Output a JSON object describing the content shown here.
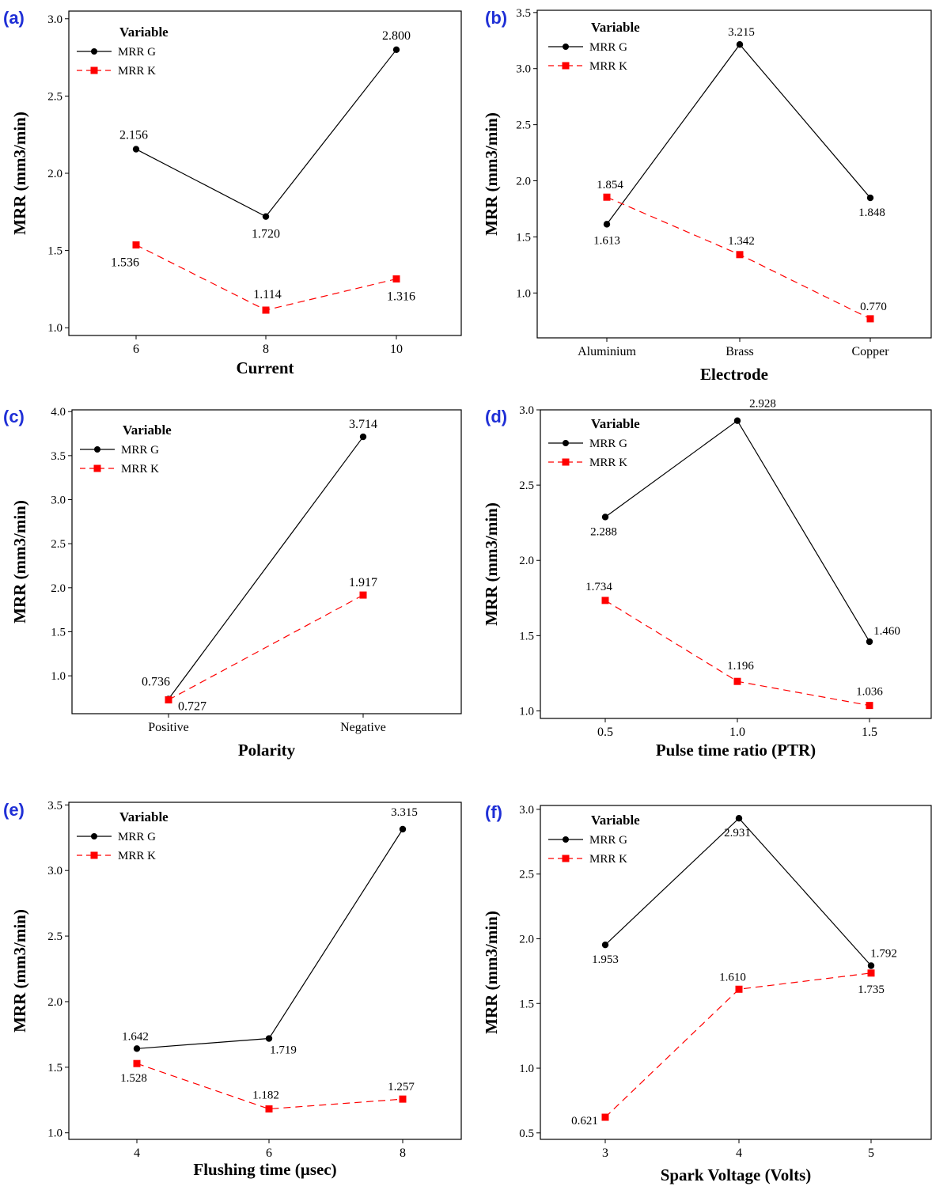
{
  "figure": {
    "chart_data": [
      {
        "panel_label": "(a)",
        "type": "line",
        "xlabel": "Current",
        "ylabel": "MRR (mm3/min)",
        "categories": [
          "6",
          "8",
          "10"
        ],
        "ylim": [
          0.95,
          3.05
        ],
        "yticks": [
          "1.0",
          "1.5",
          "2.0",
          "2.5",
          "3.0"
        ],
        "legend": {
          "title": "Variable",
          "position": "top-left"
        },
        "series": [
          {
            "name": "MRR G",
            "color": "#000000",
            "marker": "circle",
            "values": [
              2.156,
              1.72,
              2.8
            ],
            "labels": [
              "2.156",
              "1.720",
              "2.800"
            ]
          },
          {
            "name": "MRR K",
            "color": "#ff0000",
            "marker": "square",
            "values": [
              1.536,
              1.114,
              1.316
            ],
            "labels": [
              "1.536",
              "1.114",
              "1.316"
            ]
          }
        ]
      },
      {
        "panel_label": "(b)",
        "type": "line",
        "xlabel": "Electrode",
        "ylabel": "MRR (mm3/min)",
        "categories": [
          "Aluminium",
          "Brass",
          "Copper"
        ],
        "ylim": [
          0.6,
          3.52
        ],
        "yticks": [
          "1.0",
          "1.5",
          "2.0",
          "2.5",
          "3.0",
          "3.5"
        ],
        "legend": {
          "title": "Variable",
          "position": "top-left"
        },
        "series": [
          {
            "name": "MRR G",
            "color": "#000000",
            "marker": "circle",
            "values": [
              1.613,
              3.215,
              1.848
            ],
            "labels": [
              "1.613",
              "3.215",
              "1.848"
            ]
          },
          {
            "name": "MRR K",
            "color": "#ff0000",
            "marker": "square",
            "values": [
              1.854,
              1.342,
              0.77
            ],
            "labels": [
              "1.854",
              "1.342",
              "0.770"
            ]
          }
        ]
      },
      {
        "panel_label": "(c)",
        "type": "line",
        "xlabel": "Polarity",
        "ylabel": "MRR (mm3/min)",
        "categories": [
          "Positive",
          "Negative"
        ],
        "ylim": [
          0.57,
          4.02
        ],
        "yticks": [
          "1.0",
          "1.5",
          "2.0",
          "2.5",
          "3.0",
          "3.5",
          "4.0"
        ],
        "legend": {
          "title": "Variable",
          "position": "top-left"
        },
        "series": [
          {
            "name": "MRR G",
            "color": "#000000",
            "marker": "circle",
            "values": [
              0.736,
              3.714
            ],
            "labels": [
              "0.736",
              "3.714"
            ]
          },
          {
            "name": "MRR K",
            "color": "#ff0000",
            "marker": "square",
            "values": [
              0.727,
              1.917
            ],
            "labels": [
              "0.727",
              "1.917"
            ]
          }
        ]
      },
      {
        "panel_label": "(d)",
        "type": "line",
        "xlabel": "Pulse time ratio (PTR)",
        "ylabel": "MRR (mm3/min)",
        "categories": [
          "0.5",
          "1.0",
          "1.5"
        ],
        "ylim": [
          0.95,
          3.0
        ],
        "yticks": [
          "1.0",
          "1.5",
          "2.0",
          "2.5",
          "3.0"
        ],
        "legend": {
          "title": "Variable",
          "position": "top-left"
        },
        "series": [
          {
            "name": "MRR G",
            "color": "#000000",
            "marker": "circle",
            "values": [
              2.288,
              2.928,
              1.46
            ],
            "labels": [
              "2.288",
              "2.928",
              "1.460"
            ]
          },
          {
            "name": "MRR K",
            "color": "#ff0000",
            "marker": "square",
            "values": [
              1.734,
              1.196,
              1.036
            ],
            "labels": [
              "1.734",
              "1.196",
              "1.036"
            ]
          }
        ]
      },
      {
        "panel_label": "(e)",
        "type": "line",
        "xlabel": "Flushing time (µsec)",
        "ylabel": "MRR (mm3/min)",
        "categories": [
          "4",
          "6",
          "8"
        ],
        "ylim": [
          0.95,
          3.52
        ],
        "yticks": [
          "1.0",
          "1.5",
          "2.0",
          "2.5",
          "3.0",
          "3.5"
        ],
        "legend": {
          "title": "Variable",
          "position": "top-left"
        },
        "series": [
          {
            "name": "MRR G",
            "color": "#000000",
            "marker": "circle",
            "values": [
              1.642,
              1.719,
              3.315
            ],
            "labels": [
              "1.642",
              "1.719",
              "3.315"
            ]
          },
          {
            "name": "MRR K",
            "color": "#ff0000",
            "marker": "square",
            "values": [
              1.528,
              1.182,
              1.257
            ],
            "labels": [
              "1.528",
              "1.182",
              "1.257"
            ]
          }
        ]
      },
      {
        "panel_label": "(f)",
        "type": "line",
        "xlabel": "Spark Voltage (Volts)",
        "ylabel": "MRR (mm3/min)",
        "categories": [
          "3",
          "4",
          "5"
        ],
        "ylim": [
          0.45,
          3.03
        ],
        "yticks": [
          "0.5",
          "1.0",
          "1.5",
          "2.0",
          "2.5",
          "3.0"
        ],
        "legend": {
          "title": "Variable",
          "position": "top-left"
        },
        "series": [
          {
            "name": "MRR G",
            "color": "#000000",
            "marker": "circle",
            "values": [
              1.953,
              2.931,
              1.792
            ],
            "labels": [
              "1.953",
              "2.931",
              "1.792"
            ]
          },
          {
            "name": "MRR K",
            "color": "#ff0000",
            "marker": "square",
            "values": [
              0.621,
              1.61,
              1.735
            ],
            "labels": [
              "0.621",
              "1.610",
              "1.735"
            ]
          }
        ]
      }
    ]
  }
}
